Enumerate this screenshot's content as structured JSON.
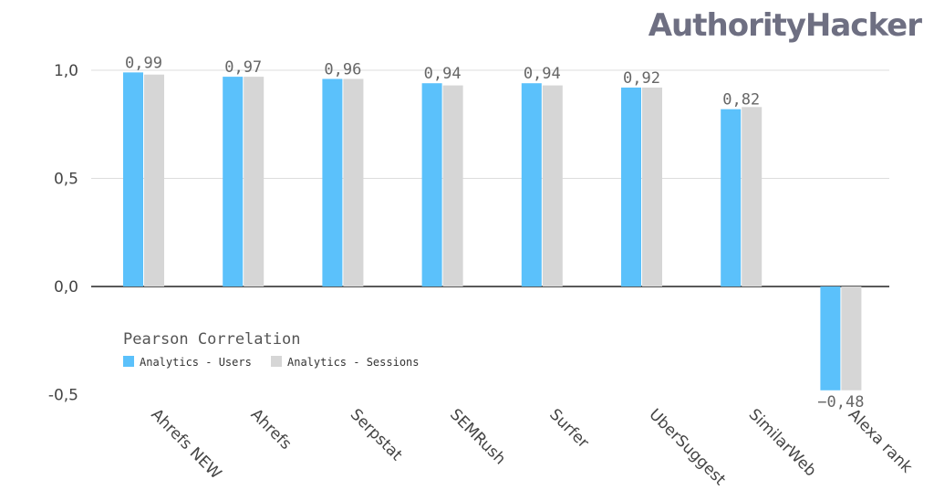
{
  "brand": {
    "name": "AuthorityHacker"
  },
  "chart_data": {
    "type": "bar",
    "title": "",
    "xlabel": "",
    "ylabel": "",
    "ylim": [
      -0.5,
      1.0
    ],
    "yticks": [
      "1,0",
      "0,5",
      "0,0",
      "-0,5"
    ],
    "ytick_values": [
      1.0,
      0.5,
      0.0,
      -0.5
    ],
    "grid": true,
    "legend_title": "Pearson Correlation",
    "legend_position": "bottom-left",
    "categories": [
      "Ahrefs NEW",
      "Ahrefs",
      "Serpstat",
      "SEMRush",
      "Surfer",
      "UberSuggest",
      "SimilarWeb",
      "Alexa rank"
    ],
    "series": [
      {
        "name": "Analytics - Users",
        "color": "#5bc1fb",
        "values": [
          0.99,
          0.97,
          0.96,
          0.94,
          0.94,
          0.92,
          0.82,
          -0.48
        ],
        "labels": [
          "0,99",
          "0,97",
          "0,96",
          "0,94",
          "0,94",
          "0,92",
          "0,82",
          "−0,48"
        ]
      },
      {
        "name": "Analytics - Sessions",
        "color": "#d6d6d6",
        "values": [
          0.98,
          0.97,
          0.96,
          0.93,
          0.93,
          0.92,
          0.83,
          -0.48
        ]
      }
    ]
  }
}
